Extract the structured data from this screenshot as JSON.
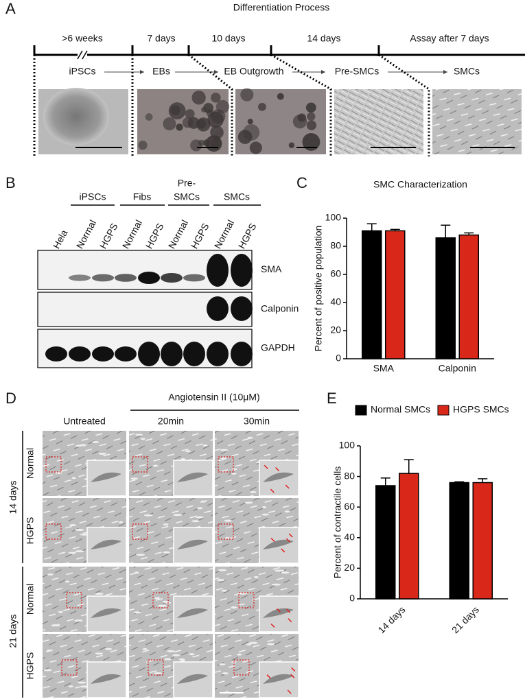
{
  "panels": {
    "A": {
      "label": "A",
      "title": "Differentiation Process",
      "durations": [
        ">6 weeks",
        "7 days",
        "10 days",
        "14 days",
        "Assay after 7 days"
      ],
      "stages": [
        "iPSCs",
        "EBs",
        "EB Outgrowth",
        "Pre-SMCs",
        "SMCs"
      ]
    },
    "B": {
      "label": "B",
      "groups": [
        "iPSCs",
        "Fibs",
        "Pre-",
        "SMCs",
        "SMCs"
      ],
      "lanes": [
        "Hela",
        "Normal",
        "HGPS",
        "Normal",
        "HGPS",
        "Normal",
        "HGPS",
        "Normal",
        "HGPS"
      ],
      "bands": [
        "SMA",
        "Calponin",
        "GAPDH"
      ]
    },
    "D": {
      "label": "D",
      "treatment": "Angiotensin II (10μM)",
      "columns": [
        "Untreated",
        "20min",
        "30min"
      ],
      "timepoints": [
        "14 days",
        "21 days"
      ],
      "rows": [
        "Normal",
        "HGPS",
        "Normal",
        "HGPS"
      ]
    }
  },
  "chart_data": [
    {
      "type": "bar",
      "label": "C",
      "title": "SMC Characterization",
      "ylabel": "Percent of positive population",
      "categories": [
        "SMA",
        "Calponin"
      ],
      "series": [
        {
          "color": "#000000",
          "values": [
            91,
            86
          ],
          "errors": [
            5,
            9
          ]
        },
        {
          "color": "#d9281a",
          "values": [
            91,
            88
          ],
          "errors": [
            1,
            1.5
          ]
        }
      ],
      "ylim": [
        0,
        100
      ],
      "yticks": [
        0,
        20,
        40,
        60,
        80,
        100
      ]
    },
    {
      "type": "bar",
      "label": "E",
      "ylabel": "Percent of contractile cells",
      "categories": [
        "14 days",
        "21 days"
      ],
      "series": [
        {
          "name": "Normal SMCs",
          "color": "#000000",
          "values": [
            74,
            76
          ],
          "errors": [
            5,
            0.5
          ]
        },
        {
          "name": "HGPS SMCs",
          "color": "#d9281a",
          "values": [
            82,
            76
          ],
          "errors": [
            9,
            2.5
          ]
        }
      ],
      "ylim": [
        0,
        100
      ],
      "yticks": [
        0,
        20,
        40,
        60,
        80,
        100
      ]
    }
  ]
}
